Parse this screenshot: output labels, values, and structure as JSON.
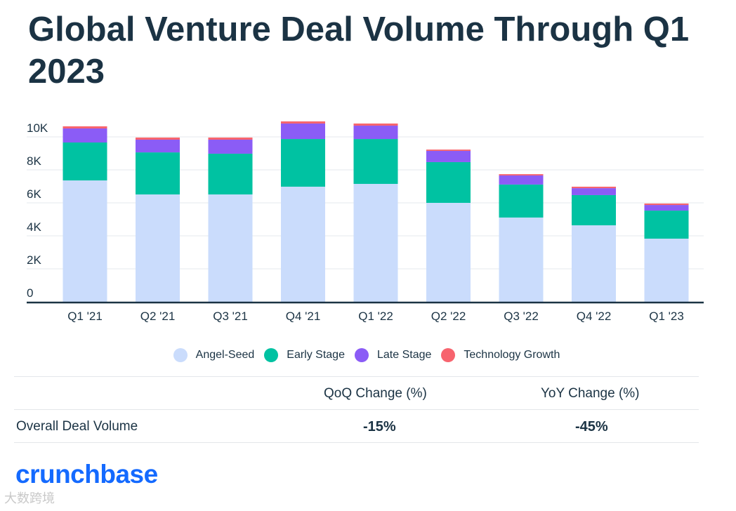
{
  "title": "Global Venture Deal Volume Through Q1 2023",
  "chart_data": {
    "type": "bar",
    "stacked": true,
    "title": "Global Venture Deal Volume Through Q1 2023",
    "categories": [
      "Q1 '21",
      "Q2 '21",
      "Q3 '21",
      "Q4 '21",
      "Q1 '22",
      "Q2 '22",
      "Q3 '22",
      "Q4 '22",
      "Q1 '23"
    ],
    "series": [
      {
        "name": "Angel-Seed",
        "color": "#cadcfc",
        "values": [
          7360,
          6510,
          6510,
          6980,
          7150,
          6000,
          5110,
          4640,
          3830
        ]
      },
      {
        "name": "Early Stage",
        "color": "#00c2a2",
        "values": [
          2300,
          2550,
          2470,
          2890,
          2720,
          2470,
          2000,
          1830,
          1700
        ]
      },
      {
        "name": "Late Stage",
        "color": "#8b5cf6",
        "values": [
          850,
          770,
          850,
          940,
          810,
          680,
          550,
          420,
          340
        ]
      },
      {
        "name": "Technology Growth",
        "color": "#f7646e",
        "values": [
          130,
          130,
          130,
          130,
          130,
          80,
          80,
          90,
          90
        ]
      }
    ],
    "ylim": [
      0,
      10000
    ],
    "yticks": [
      {
        "v": 0,
        "label": "0"
      },
      {
        "v": 2000,
        "label": "2K"
      },
      {
        "v": 4000,
        "label": "4K"
      },
      {
        "v": 6000,
        "label": "6K"
      },
      {
        "v": 8000,
        "label": "8K"
      },
      {
        "v": 10000,
        "label": "10K"
      }
    ],
    "grid": true,
    "legend_position": "bottom"
  },
  "table": {
    "headers": [
      "QoQ Change (%)",
      "YoY Change (%)"
    ],
    "row_label": "Overall Deal Volume",
    "values": [
      "-15%",
      "-45%"
    ]
  },
  "logo": "crunchbase",
  "watermark": "大数跨境"
}
